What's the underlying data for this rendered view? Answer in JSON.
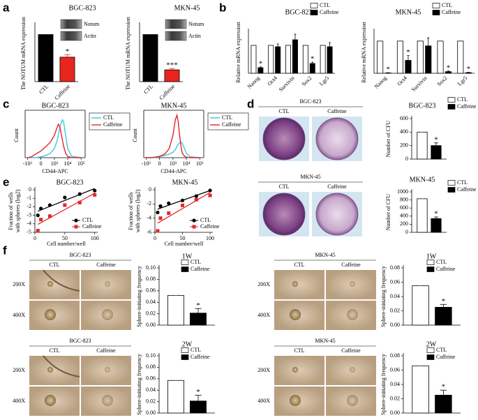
{
  "panels": {
    "letters": [
      "a",
      "b",
      "c",
      "d",
      "e",
      "f"
    ],
    "colony_images": [
      {
        "title": "BGC-823",
        "columns": [
          "CTL",
          "Caffeine"
        ]
      },
      {
        "title": "MKN-45",
        "columns": [
          "CTL",
          "Caffeine"
        ]
      }
    ],
    "sphere_images": [
      {
        "title": "BGC-823",
        "columns": [
          "CTL",
          "Caffeine"
        ],
        "rows": [
          "200X",
          "400X"
        ]
      },
      {
        "title": "BGC-823",
        "columns": [
          "CTL",
          "Caffeine"
        ],
        "rows": [
          "200X",
          "400X"
        ]
      },
      {
        "title": "MKN-45",
        "columns": [
          "CTL",
          "Caffeine"
        ],
        "rows": [
          "200X",
          "400X"
        ]
      },
      {
        "title": "MKN-45",
        "columns": [
          "CTL",
          "Caffeine"
        ],
        "rows": [
          "200X",
          "400X"
        ]
      }
    ]
  },
  "chart_data": [
    {
      "type": "bar",
      "title": "BGC-823",
      "ylabel": "The NOTUM mRNA expression",
      "categories": [
        "CTL",
        "Caffeine"
      ],
      "values": [
        1.0,
        0.52
      ],
      "errors": [
        null,
        0.05
      ],
      "colors": [
        "#000000",
        "#e8251f"
      ],
      "value_annotations": [
        null,
        "*"
      ],
      "ylim": [
        0,
        1.2
      ],
      "blot_labels": [
        "Notum",
        "Actin"
      ]
    },
    {
      "type": "bar",
      "title": "MKN-45",
      "ylabel": "The NOTUM mRNA expression",
      "categories": [
        "CTL",
        "Caffeine"
      ],
      "values": [
        1.0,
        0.25
      ],
      "errors": [
        null,
        0.03
      ],
      "colors": [
        "#000000",
        "#e8251f"
      ],
      "value_annotations": [
        null,
        "***"
      ],
      "ylim": [
        0,
        1.2
      ],
      "blot_labels": [
        "Notum",
        "Actin"
      ]
    },
    {
      "type": "bar",
      "title": "BGC-823",
      "ylabel": "Relative mRNA expression",
      "categories": [
        "Nanog",
        "Oct4",
        "Survivin",
        "Sox2",
        "Lgr5"
      ],
      "series": [
        {
          "name": "CTL",
          "color": "#ffffff",
          "values": [
            1,
            1,
            1,
            1,
            1
          ]
        },
        {
          "name": "Caffeine",
          "color": "#000000",
          "values": [
            0.2,
            0.95,
            1.2,
            0.35,
            0.95
          ],
          "errors": [
            0.03,
            0.1,
            0.2,
            0.05,
            0.15
          ],
          "value_annotations": [
            "*",
            null,
            null,
            "*",
            null
          ]
        }
      ],
      "ylim": [
        0,
        1.5
      ]
    },
    {
      "type": "bar",
      "title": "MKN-45",
      "ylabel": "Relative mRNA expression",
      "categories": [
        "Nanog",
        "Oct4",
        "Survivin",
        "Sox2",
        "Lgr5"
      ],
      "series": [
        {
          "name": "CTL",
          "color": "#ffffff",
          "values": [
            1,
            1,
            1,
            1,
            1
          ]
        },
        {
          "name": "Caffeine",
          "color": "#000000",
          "values": [
            0.01,
            0.4,
            0.85,
            0.05,
            0.02
          ],
          "errors": [
            0.01,
            0.15,
            0.25,
            0.02,
            0.01
          ],
          "value_annotations": [
            "*",
            "*",
            null,
            "*",
            "*"
          ]
        }
      ],
      "ylim": [
        0,
        1.3
      ]
    },
    {
      "type": "line",
      "title": "BGC-823",
      "ylabel": "Count",
      "xlabel": "CD44-APC",
      "scale": "biexponential",
      "frame": true,
      "x": [
        -1000,
        -500,
        -200,
        0,
        200,
        500,
        1000,
        1500,
        2000,
        2500,
        3000,
        4000,
        5000,
        7000,
        10000,
        20000,
        100000
      ],
      "series": [
        {
          "name": "CTL",
          "color": "#3fc6e0",
          "values": [
            0,
            0,
            0,
            2,
            5,
            10,
            20,
            35,
            50,
            65,
            75,
            85,
            80,
            50,
            20,
            3,
            0
          ]
        },
        {
          "name": "Caffeine",
          "color": "#e3262b",
          "values": [
            0,
            2,
            8,
            15,
            25,
            35,
            50,
            65,
            75,
            70,
            60,
            40,
            25,
            10,
            3,
            0,
            0
          ]
        }
      ],
      "xlim": [
        -1500,
        200000
      ],
      "xticks": [
        {
          "value": -1000,
          "label": "-10³"
        },
        0,
        {
          "value": 1000,
          "label": "10³"
        },
        {
          "value": 10000,
          "label": "10⁴"
        },
        {
          "value": 100000,
          "label": "10⁵"
        }
      ],
      "ylim": [
        0,
        100
      ]
    },
    {
      "type": "line",
      "title": "MKN-45",
      "ylabel": "Count",
      "xlabel": "CD44-APC",
      "scale": "biexponential",
      "frame": true,
      "x": [
        -1000,
        -500,
        -200,
        0,
        200,
        500,
        1000,
        1500,
        2000,
        2500,
        3000,
        4000,
        5000,
        7000,
        10000,
        20000,
        100000
      ],
      "series": [
        {
          "name": "CTL",
          "color": "#3fc6e0",
          "values": [
            0,
            0,
            0,
            2,
            5,
            8,
            12,
            18,
            25,
            30,
            33,
            35,
            32,
            22,
            10,
            2,
            0
          ]
        },
        {
          "name": "Caffeine",
          "color": "#e3262b",
          "values": [
            0,
            0,
            1,
            3,
            8,
            20,
            50,
            85,
            95,
            80,
            55,
            25,
            10,
            4,
            1,
            0,
            0
          ]
        }
      ],
      "xlim": [
        -1500,
        200000
      ],
      "xticks": [
        {
          "value": -1000,
          "label": "-10³"
        },
        0,
        {
          "value": 1000,
          "label": "10³"
        },
        {
          "value": 10000,
          "label": "10⁴"
        },
        {
          "value": 100000,
          "label": "10⁵"
        }
      ],
      "ylim": [
        0,
        100
      ]
    },
    {
      "type": "bar",
      "title": "BGC-823",
      "ylabel": "Number of CFU",
      "categories": [
        null
      ],
      "series": [
        {
          "name": "CTL",
          "color": "#ffffff",
          "values": [
            400
          ],
          "errors": [
            50
          ]
        },
        {
          "name": "Caffeine",
          "color": "#000000",
          "values": [
            200
          ],
          "errors": [
            40
          ],
          "value_annotations": [
            "*"
          ]
        }
      ],
      "ylim": [
        0,
        600
      ],
      "yticks": [
        0,
        200,
        400,
        600
      ]
    },
    {
      "type": "bar",
      "title": "MKN-45",
      "ylabel": "Number of CFU",
      "categories": [
        null
      ],
      "series": [
        {
          "name": "CTL",
          "color": "#ffffff",
          "values": [
            830
          ],
          "errors": [
            90
          ]
        },
        {
          "name": "Caffeine",
          "color": "#000000",
          "values": [
            340
          ],
          "errors": [
            40
          ],
          "value_annotations": [
            "*"
          ]
        }
      ],
      "ylim": [
        0,
        1000
      ],
      "yticks": [
        0,
        200,
        400,
        600,
        800,
        1000
      ]
    },
    {
      "type": "scatter",
      "title": "BGC-823",
      "ylabel": [
        "Fraction of wells",
        "with spheres (log2)"
      ],
      "xlabel": "Cell number/well",
      "series": [
        {
          "name": "CTL",
          "color": "#000000",
          "marker": "circle",
          "x": [
            5,
            10,
            25,
            50,
            75,
            100
          ],
          "values": [
            -3,
            -2.2,
            -1.8,
            -0.9,
            -0.5,
            -0.1
          ]
        },
        {
          "name": "Caffeine",
          "color": "#e3262b",
          "marker": "square",
          "x": [
            5,
            10,
            25,
            50,
            75,
            100
          ],
          "values": [
            -4.8,
            -3.5,
            -3.1,
            -1.8,
            -1.5,
            -0.6
          ]
        }
      ],
      "xlim": [
        0,
        105
      ],
      "xticks": [
        0,
        50,
        100
      ],
      "ylim": [
        -5,
        0
      ],
      "yticks": [
        0,
        -1,
        -2,
        -3,
        -4,
        -5
      ]
    },
    {
      "type": "scatter",
      "title": "MKN-45",
      "ylabel": [
        "Fraction of wells",
        "with spheres (log2)"
      ],
      "xlabel": "Cell number/well",
      "series": [
        {
          "name": "CTL",
          "color": "#000000",
          "marker": "circle",
          "x": [
            5,
            10,
            25,
            50,
            75,
            100
          ],
          "values": [
            -3.2,
            -2.3,
            -1.9,
            -1.5,
            -0.9,
            -0.1
          ]
        },
        {
          "name": "Caffeine",
          "color": "#e3262b",
          "marker": "square",
          "x": [
            5,
            10,
            25,
            50,
            75,
            100
          ],
          "values": [
            -5.8,
            -4,
            -3.3,
            -2.2,
            -1.4,
            -0.8
          ]
        }
      ],
      "xlim": [
        0,
        105
      ],
      "xticks": [
        0,
        50,
        100
      ],
      "ylim": [
        -6,
        0
      ],
      "yticks": [
        0,
        -2,
        -4,
        -6
      ]
    },
    {
      "type": "bar",
      "title": "1W",
      "ylabel": "Sphere-initiating frequency",
      "categories": [
        null
      ],
      "series": [
        {
          "name": "CTL",
          "color": "#ffffff",
          "values": [
            0.052
          ],
          "errors": [
            0.006
          ]
        },
        {
          "name": "Caffeine",
          "color": "#000000",
          "values": [
            0.021
          ],
          "errors": [
            0.008
          ],
          "value_annotations": [
            "*"
          ]
        }
      ],
      "ylim": [
        0,
        0.1
      ],
      "yticks": [
        {
          "value": 0,
          "label": "0.00"
        },
        {
          "value": 0.02,
          "label": "0.02"
        },
        {
          "value": 0.04,
          "label": "0.04"
        },
        {
          "value": 0.06,
          "label": "0.06"
        },
        {
          "value": 0.08,
          "label": "0.08"
        },
        {
          "value": 0.1,
          "label": "0.10"
        }
      ]
    },
    {
      "type": "bar",
      "title": "2W",
      "ylabel": "Sphere-initiating frequency",
      "categories": [
        null
      ],
      "series": [
        {
          "name": "CTL",
          "color": "#ffffff",
          "values": [
            0.057
          ],
          "errors": [
            0.012
          ]
        },
        {
          "name": "Caffeine",
          "color": "#000000",
          "values": [
            0.021
          ],
          "errors": [
            0.01
          ],
          "value_annotations": [
            "*"
          ]
        }
      ],
      "ylim": [
        0,
        0.1
      ],
      "yticks": [
        {
          "value": 0,
          "label": "0.00"
        },
        {
          "value": 0.02,
          "label": "0.02"
        },
        {
          "value": 0.04,
          "label": "0.04"
        },
        {
          "value": 0.06,
          "label": "0.06"
        },
        {
          "value": 0.08,
          "label": "0.08"
        },
        {
          "value": 0.1,
          "label": "0.10"
        }
      ]
    },
    {
      "type": "bar",
      "title": "1W",
      "ylabel": "Sphere-initiating frequency",
      "categories": [
        null
      ],
      "series": [
        {
          "name": "CTL",
          "color": "#ffffff",
          "values": [
            0.055
          ],
          "errors": [
            0.01
          ]
        },
        {
          "name": "Caffeine",
          "color": "#000000",
          "values": [
            0.025
          ],
          "errors": [
            0.004
          ],
          "value_annotations": [
            "*"
          ]
        }
      ],
      "ylim": [
        0,
        0.08
      ],
      "yticks": [
        {
          "value": 0,
          "label": "0.00"
        },
        {
          "value": 0.02,
          "label": "0.02"
        },
        {
          "value": 0.04,
          "label": "0.04"
        },
        {
          "value": 0.06,
          "label": "0.06"
        },
        {
          "value": 0.08,
          "label": "0.08"
        }
      ]
    },
    {
      "type": "bar",
      "title": "2W",
      "ylabel": "Sphere-initiating frequency",
      "categories": [
        null
      ],
      "series": [
        {
          "name": "CTL",
          "color": "#ffffff",
          "values": [
            0.066
          ],
          "errors": [
            0.008
          ]
        },
        {
          "name": "Caffeine",
          "color": "#000000",
          "values": [
            0.025
          ],
          "errors": [
            0.007
          ],
          "value_annotations": [
            "*"
          ]
        }
      ],
      "ylim": [
        0,
        0.08
      ],
      "yticks": [
        {
          "value": 0,
          "label": "0.00"
        },
        {
          "value": 0.02,
          "label": "0.02"
        },
        {
          "value": 0.04,
          "label": "0.04"
        },
        {
          "value": 0.06,
          "label": "0.06"
        },
        {
          "value": 0.08,
          "label": "0.08"
        }
      ]
    }
  ]
}
